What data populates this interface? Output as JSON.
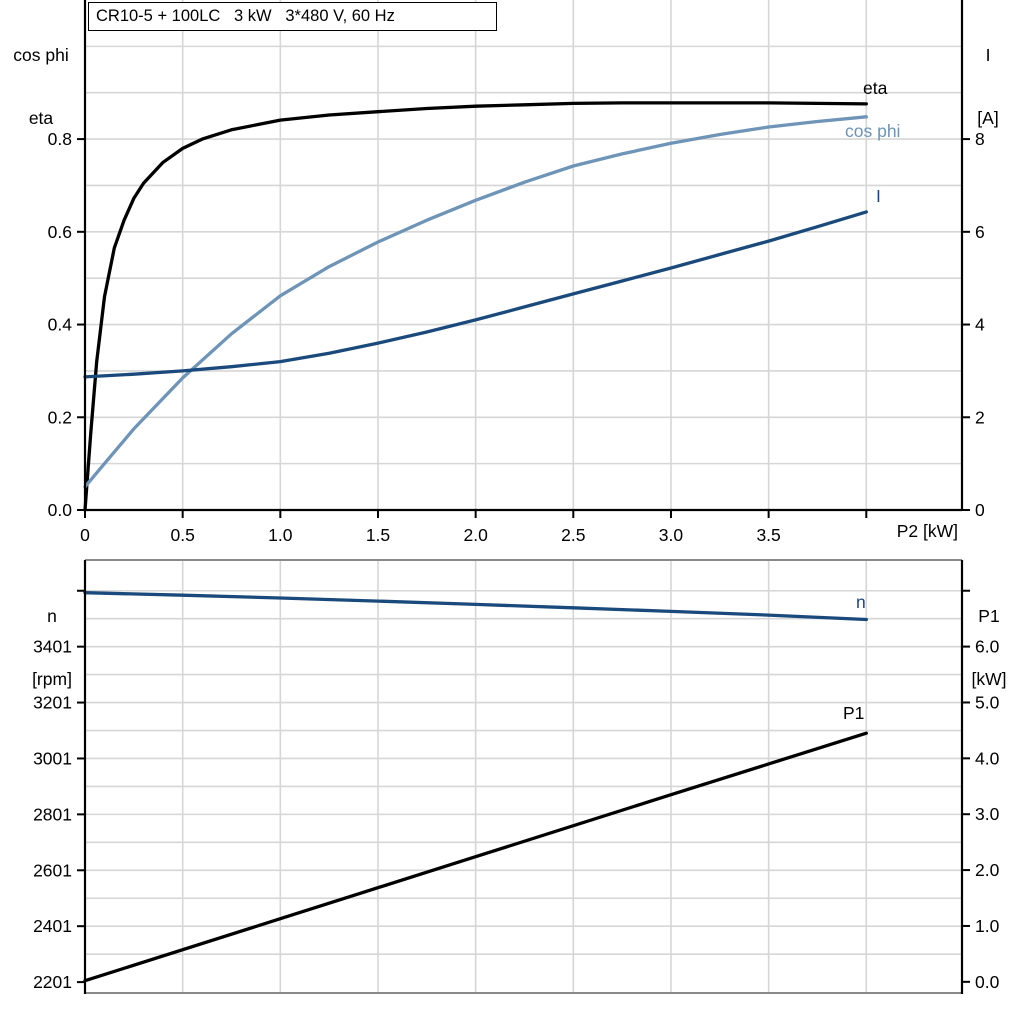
{
  "title": "CR10-5 + 100LC   3 kW   3*480 V, 60 Hz",
  "colors": {
    "eta": "#000000",
    "cos_phi": "#6E94B8",
    "current": "#1A4A7C",
    "speed": "#1A4A7C",
    "p1": "#000000",
    "grid": "#D6D6D6",
    "axis": "#000000",
    "frame_gray": "#8A8A8A",
    "background": "#FFFFFF"
  },
  "top_chart": {
    "header_left": [
      "cos phi",
      "eta"
    ],
    "header_right": [
      "I",
      "[A]"
    ],
    "x_axis_label": "P2 [kW]",
    "curve_labels": {
      "eta": "eta",
      "cos_phi": "cos phi",
      "current": "I"
    }
  },
  "bottom_chart": {
    "header_left": [
      "n",
      "[rpm]"
    ],
    "header_right": [
      "P1",
      "[kW]"
    ],
    "curve_labels": {
      "speed": "n",
      "p1": "P1"
    }
  },
  "chart_data": [
    {
      "type": "line",
      "title": "CR10-5 + 100LC   3 kW   3*480 V, 60 Hz",
      "xlabel": "P2 [kW]",
      "xlim": [
        0,
        4.49
      ],
      "x_grid_step": 0.5,
      "x_ticks": [
        {
          "v": 0,
          "label": "0"
        },
        {
          "v": 0.5,
          "label": "0.5"
        },
        {
          "v": 1,
          "label": "1.0"
        },
        {
          "v": 1.5,
          "label": "1.5"
        },
        {
          "v": 2,
          "label": "2.0"
        },
        {
          "v": 2.5,
          "label": "2.5"
        },
        {
          "v": 3,
          "label": "3.0"
        },
        {
          "v": 3.5,
          "label": "3.5"
        },
        {
          "v": 4,
          "label": ""
        }
      ],
      "left_axis": {
        "title": "cos phi / eta",
        "lim": [
          0,
          1.1
        ],
        "grid_step": 0.1,
        "grid_base": 0,
        "ticks": [
          {
            "v": 0.0,
            "label": "0.0"
          },
          {
            "v": 0.2,
            "label": "0.2"
          },
          {
            "v": 0.4,
            "label": "0.4"
          },
          {
            "v": 0.6,
            "label": "0.6"
          },
          {
            "v": 0.8,
            "label": "0.8"
          }
        ]
      },
      "right_axis": {
        "title": "I [A]",
        "lim": [
          0,
          11
        ],
        "ticks": [
          {
            "v": 0,
            "label": "0"
          },
          {
            "v": 2,
            "label": "2"
          },
          {
            "v": 4,
            "label": "4"
          },
          {
            "v": 6,
            "label": "6"
          },
          {
            "v": 8,
            "label": "8"
          }
        ]
      },
      "legend_position": "curve-end-labels",
      "grid": true,
      "series": [
        {
          "name": "eta",
          "axis": "left",
          "color_key": "eta",
          "x": [
            0,
            0.03,
            0.06,
            0.1,
            0.15,
            0.2,
            0.25,
            0.3,
            0.4,
            0.5,
            0.6,
            0.75,
            1.0,
            1.25,
            1.5,
            1.75,
            2.0,
            2.25,
            2.5,
            2.75,
            3.0,
            3.25,
            3.5,
            3.75,
            4.0
          ],
          "y": [
            0,
            0.17,
            0.32,
            0.46,
            0.565,
            0.625,
            0.672,
            0.705,
            0.75,
            0.78,
            0.8,
            0.82,
            0.841,
            0.852,
            0.859,
            0.866,
            0.871,
            0.874,
            0.877,
            0.878,
            0.878,
            0.878,
            0.878,
            0.877,
            0.876
          ]
        },
        {
          "name": "cos phi",
          "axis": "left",
          "color_key": "cos_phi",
          "x": [
            0,
            0.1,
            0.25,
            0.5,
            0.75,
            1.0,
            1.25,
            1.5,
            1.75,
            2.0,
            2.25,
            2.5,
            2.75,
            3.0,
            3.25,
            3.5,
            3.75,
            4.0
          ],
          "y": [
            0.05,
            0.1,
            0.175,
            0.285,
            0.38,
            0.462,
            0.525,
            0.578,
            0.625,
            0.668,
            0.707,
            0.742,
            0.768,
            0.791,
            0.81,
            0.826,
            0.838,
            0.848
          ]
        },
        {
          "name": "I",
          "axis": "right",
          "color_key": "current",
          "x": [
            0,
            0.25,
            0.5,
            0.75,
            1.0,
            1.25,
            1.5,
            1.75,
            2.0,
            2.25,
            2.5,
            2.75,
            3.0,
            3.25,
            3.5,
            3.75,
            4.0
          ],
          "y": [
            2.87,
            2.93,
            3.0,
            3.09,
            3.2,
            3.38,
            3.6,
            3.84,
            4.1,
            4.38,
            4.66,
            4.94,
            5.22,
            5.51,
            5.8,
            6.11,
            6.43
          ]
        }
      ]
    },
    {
      "type": "line",
      "title": "",
      "xlabel": "",
      "xlim": [
        0,
        4.49
      ],
      "x_grid_step": 0.5,
      "x_ticks": [],
      "left_axis": {
        "title": "n [rpm]",
        "lim": [
          2162,
          3711
        ],
        "grid_step": 100,
        "grid_base": 2201,
        "ticks": [
          {
            "v": 3601,
            "label": ""
          },
          {
            "v": 3401,
            "label": "3401"
          },
          {
            "v": 3201,
            "label": "3201"
          },
          {
            "v": 3001,
            "label": "3001"
          },
          {
            "v": 2801,
            "label": "2801"
          },
          {
            "v": 2601,
            "label": "2601"
          },
          {
            "v": 2401,
            "label": "2401"
          },
          {
            "v": 2201,
            "label": "2201"
          }
        ]
      },
      "right_axis": {
        "title": "P1 [kW]",
        "lim": [
          -0.2,
          7.55
        ],
        "ticks": [
          {
            "v": 7.0,
            "label": ""
          },
          {
            "v": 6.0,
            "label": "6.0"
          },
          {
            "v": 5.0,
            "label": "5.0"
          },
          {
            "v": 4.0,
            "label": "4.0"
          },
          {
            "v": 3.0,
            "label": "3.0"
          },
          {
            "v": 2.0,
            "label": "2.0"
          },
          {
            "v": 1.0,
            "label": "1.0"
          },
          {
            "v": 0.0,
            "label": "0.0"
          }
        ]
      },
      "legend_position": "curve-end-labels",
      "grid": true,
      "series": [
        {
          "name": "n",
          "axis": "left",
          "color_key": "speed",
          "x": [
            0,
            0.5,
            1.0,
            1.5,
            2.0,
            2.5,
            3.0,
            3.5,
            4.0
          ],
          "y": [
            3594,
            3585,
            3575,
            3564,
            3552,
            3540,
            3527,
            3514,
            3498
          ]
        },
        {
          "name": "P1",
          "axis": "right",
          "color_key": "p1",
          "x": [
            0,
            1.0,
            2.0,
            3.0,
            4.0
          ],
          "y": [
            0.02,
            1.13,
            2.24,
            3.35,
            4.45
          ]
        }
      ]
    }
  ]
}
